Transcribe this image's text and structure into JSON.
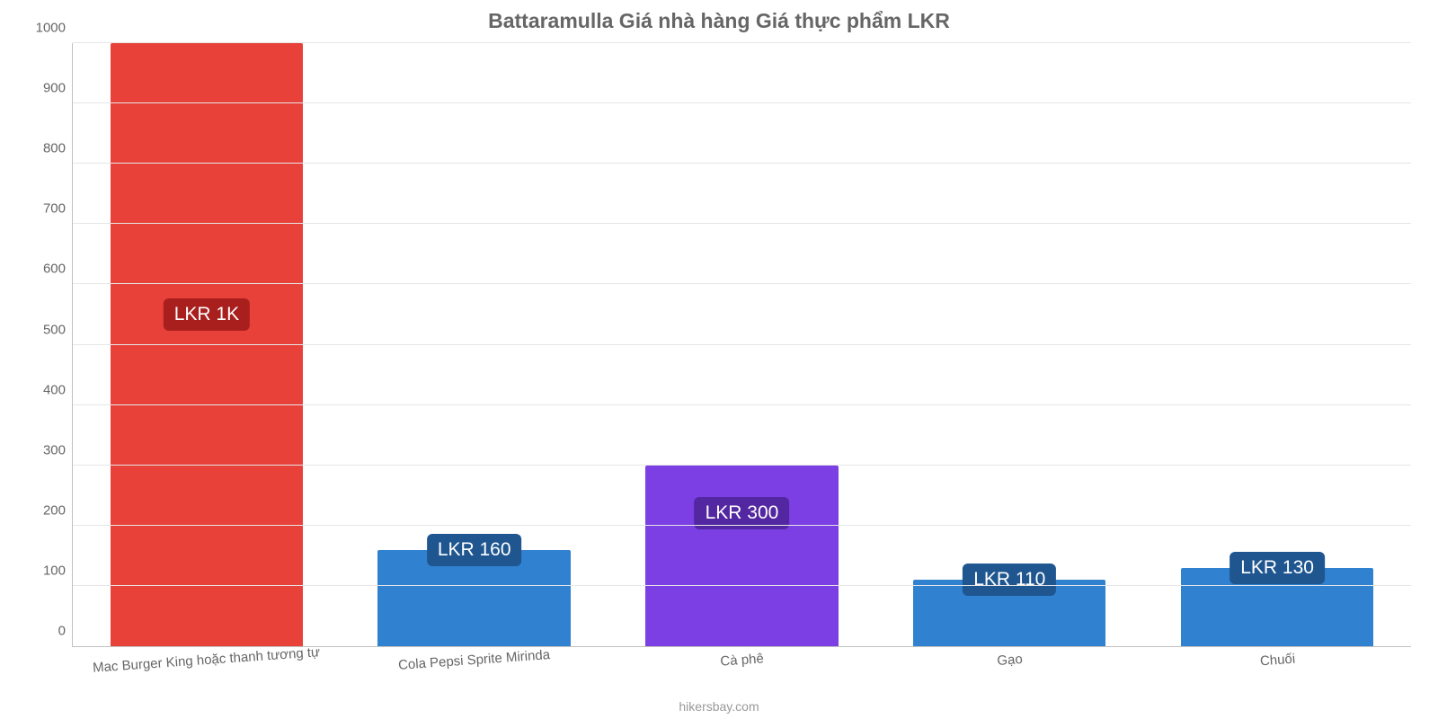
{
  "chart": {
    "type": "bar",
    "title": "Battaramulla Giá nhà hàng Giá thực phẩm LKR",
    "title_fontsize": 23,
    "title_color": "#666666",
    "background_color": "#ffffff",
    "grid_color": "#e6e6e6",
    "axis_color": "#c0c0c0",
    "label_fontsize": 15,
    "tick_fontsize": 15,
    "tick_color": "#666666",
    "attribution": "hikersbay.com",
    "attribution_color": "#999999",
    "attribution_fontsize": 14,
    "ylim": [
      0,
      1000
    ],
    "ytick_step": 100,
    "yticks": [
      "0",
      "100",
      "200",
      "300",
      "400",
      "500",
      "600",
      "700",
      "800",
      "900",
      "1000"
    ],
    "bar_width_pct": 72,
    "badge_fontsize": 21,
    "categories": [
      "Mac Burger King hoặc thanh tương tự",
      "Cola Pepsi Sprite Mirinda",
      "Cà phê",
      "Gạo",
      "Chuối"
    ],
    "values": [
      1000,
      160,
      300,
      110,
      130
    ],
    "value_labels": [
      "LKR 1K",
      "LKR 160",
      "LKR 300",
      "LKR 110",
      "LKR 130"
    ],
    "bar_colors": [
      "#e7413a",
      "#3081d0",
      "#7b3fe4",
      "#3081d0",
      "#3081d0"
    ],
    "badge_bg_colors": [
      "#a81f1d",
      "#1f5690",
      "#5327a1",
      "#1f5690",
      "#1f5690"
    ],
    "badge_text_color": "#ffffff",
    "badge_y_values": [
      550,
      160,
      220,
      110,
      130
    ]
  }
}
